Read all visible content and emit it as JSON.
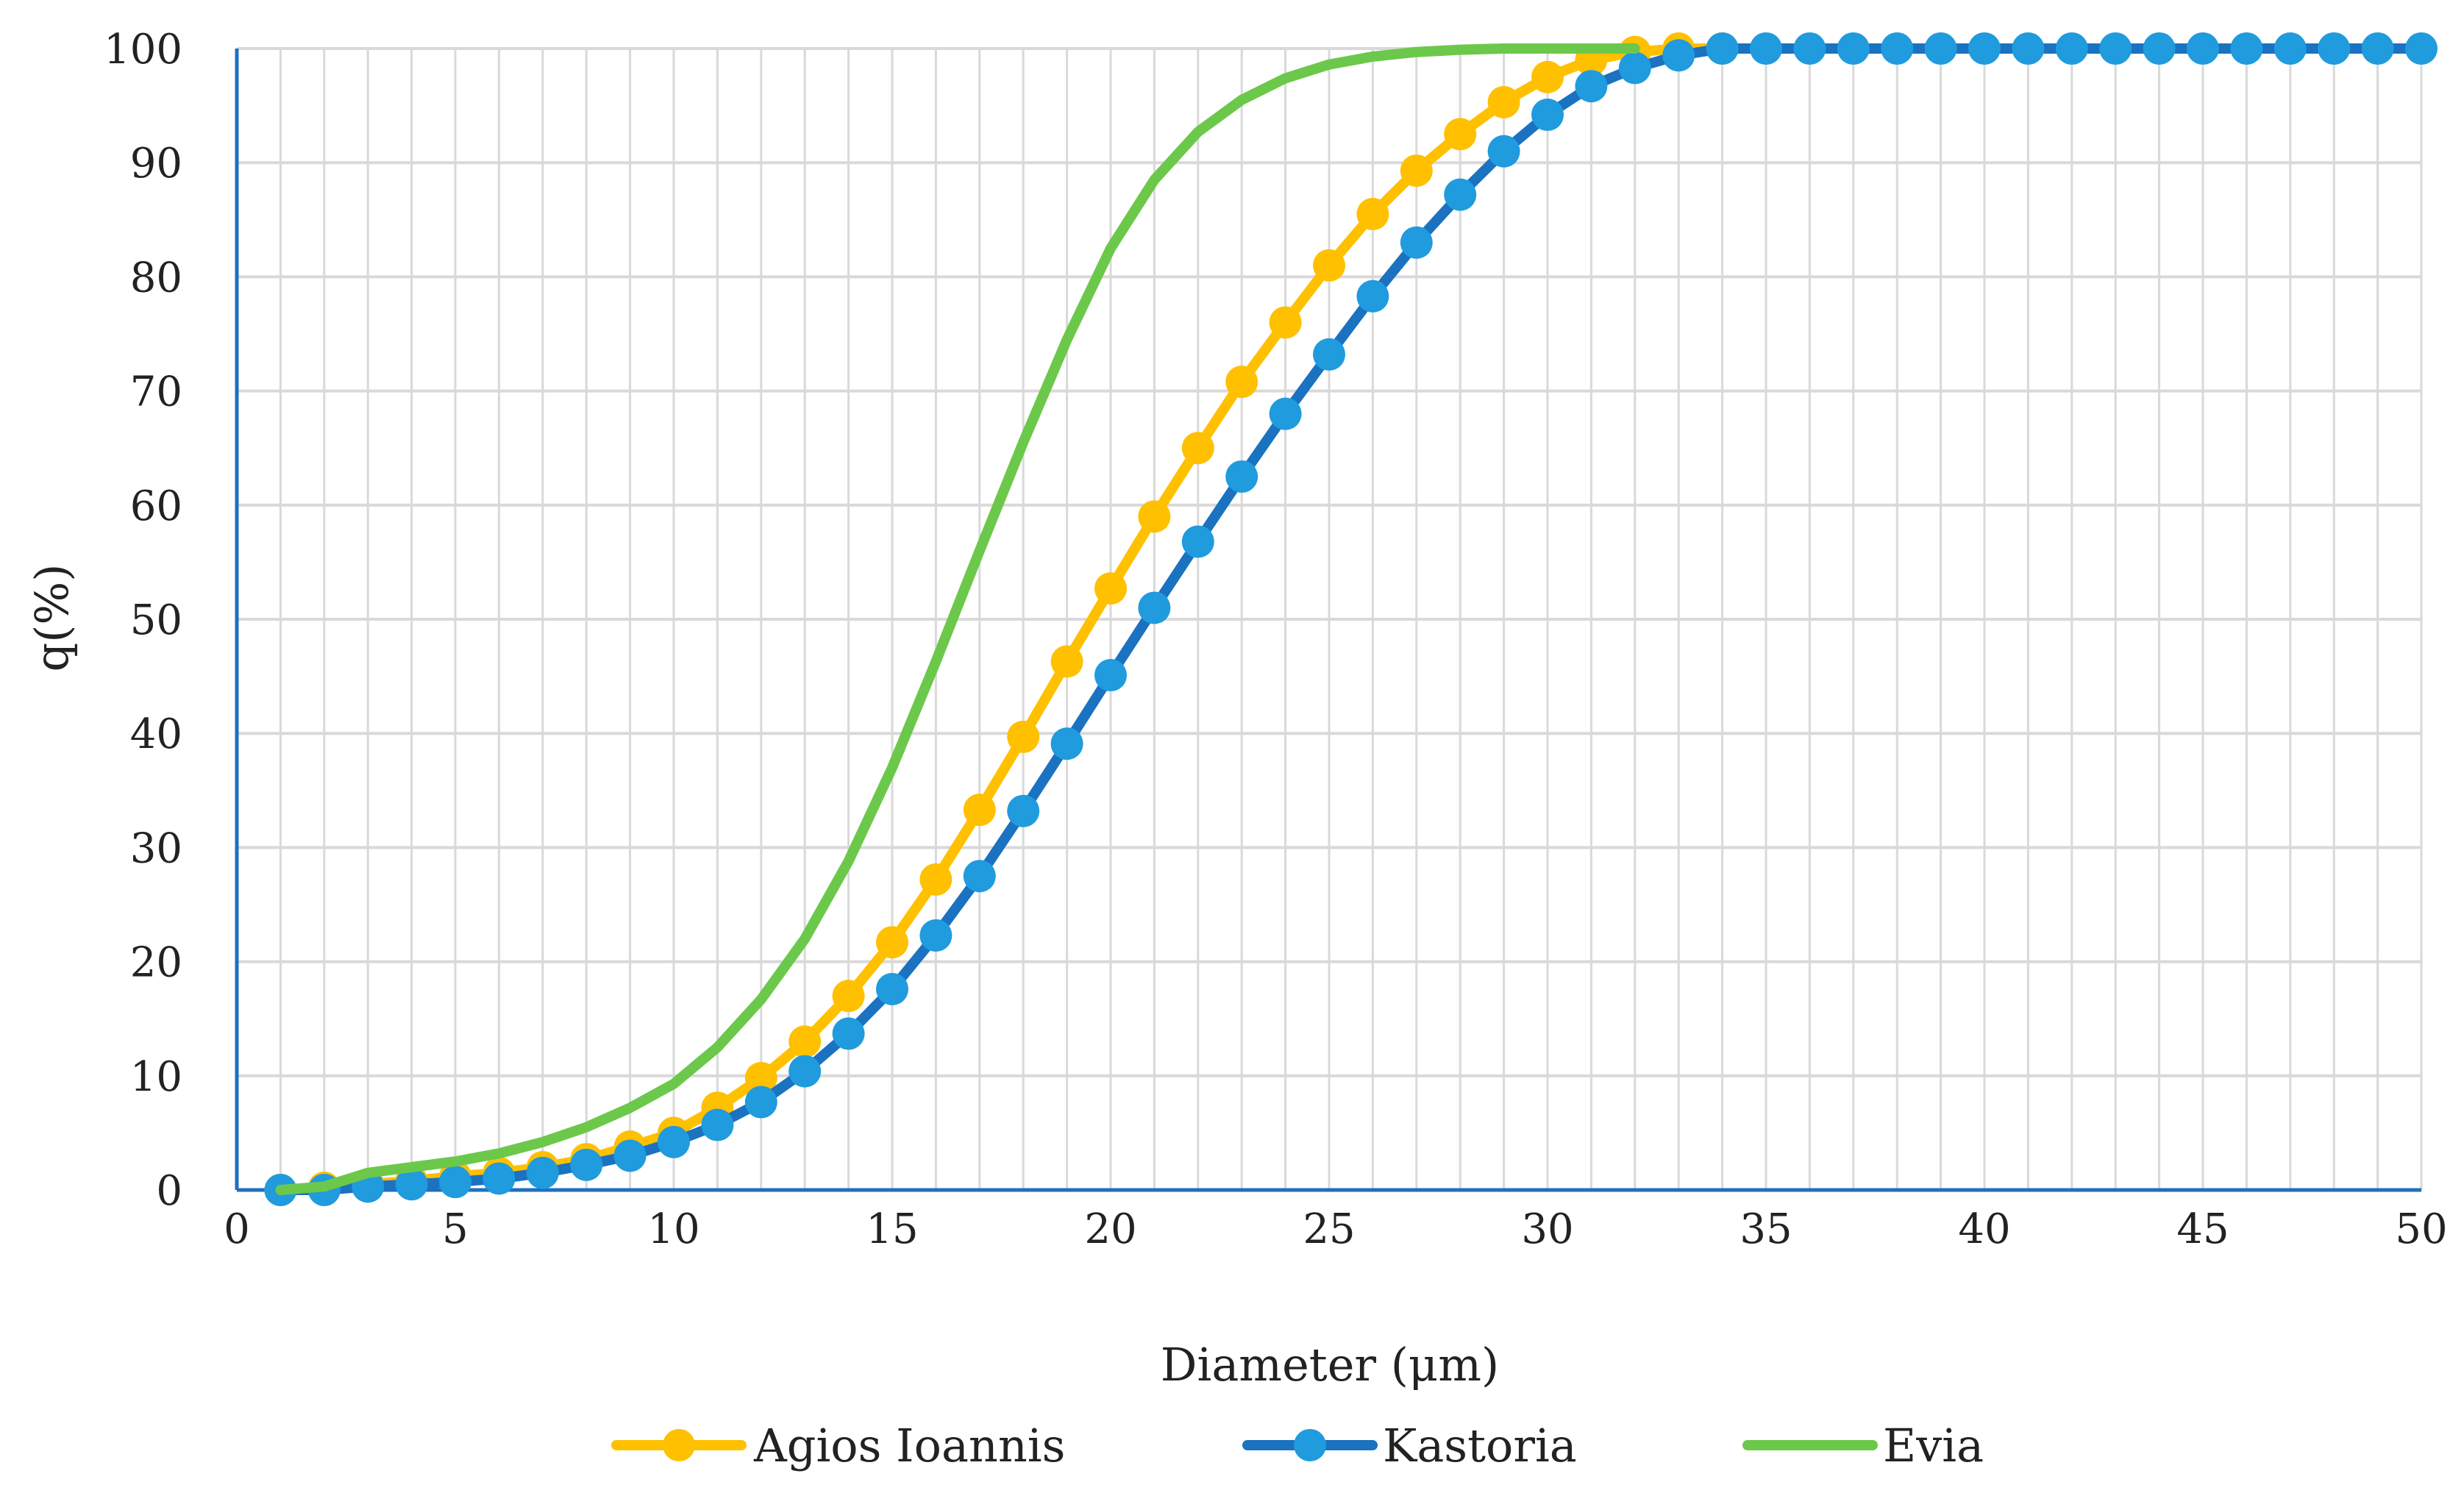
{
  "chart_data": {
    "type": "line",
    "title": "",
    "xlabel": "Diameter (μm)",
    "ylabel": "q(%)",
    "xlim": [
      0,
      50
    ],
    "ylim": [
      0,
      100
    ],
    "x_ticks": [
      "0",
      "5",
      "10",
      "15",
      "20",
      "25",
      "30",
      "35",
      "40",
      "45",
      "50"
    ],
    "y_ticks": [
      "0",
      "10",
      "20",
      "30",
      "40",
      "50",
      "60",
      "70",
      "80",
      "90",
      "100"
    ],
    "grid": true,
    "legend_position": "bottom",
    "series": [
      {
        "name": "Agios Ioannis",
        "color": "#FFC000",
        "marker": "circle",
        "x": [
          1,
          2,
          3,
          4,
          5,
          6,
          7,
          8,
          9,
          10,
          11,
          12,
          13,
          14,
          15,
          16,
          17,
          18,
          19,
          20,
          21,
          22,
          23,
          24,
          25,
          26,
          27,
          28,
          29,
          30,
          31,
          32,
          33,
          34
        ],
        "values": [
          0,
          0.2,
          0.5,
          0.8,
          1.2,
          1.5,
          2.0,
          2.7,
          3.8,
          5.0,
          7.2,
          9.8,
          13.0,
          17.0,
          21.7,
          27.2,
          33.3,
          39.7,
          46.3,
          52.7,
          59.0,
          65.0,
          70.8,
          76.0,
          81.0,
          85.5,
          89.3,
          92.5,
          95.3,
          97.5,
          99.0,
          99.7,
          100,
          100
        ]
      },
      {
        "name": "Kastoria",
        "color": "#1F9BDE",
        "line_color": "#1A72C0",
        "marker": "circle",
        "x": [
          1,
          2,
          3,
          4,
          5,
          6,
          7,
          8,
          9,
          10,
          11,
          12,
          13,
          14,
          15,
          16,
          17,
          18,
          19,
          20,
          21,
          22,
          23,
          24,
          25,
          26,
          27,
          28,
          29,
          30,
          31,
          32,
          33,
          34,
          35,
          36,
          37,
          38,
          39,
          40,
          41,
          42,
          43,
          44,
          45,
          46,
          47,
          48,
          49,
          50
        ],
        "values": [
          0,
          0,
          0.3,
          0.5,
          0.7,
          1.0,
          1.5,
          2.2,
          3.0,
          4.2,
          5.7,
          7.7,
          10.4,
          13.7,
          17.6,
          22.3,
          27.5,
          33.2,
          39.1,
          45.1,
          51.0,
          56.8,
          62.5,
          68.0,
          73.2,
          78.3,
          83.0,
          87.2,
          91.0,
          94.2,
          96.7,
          98.3,
          99.4,
          100,
          100,
          100,
          100,
          100,
          100,
          100,
          100,
          100,
          100,
          100,
          100,
          100,
          100,
          100,
          100,
          100
        ]
      },
      {
        "name": "Evia",
        "color": "#6CC84A",
        "marker": "none",
        "x": [
          1,
          2,
          3,
          4,
          5,
          6,
          7,
          8,
          9,
          10,
          11,
          12,
          13,
          14,
          15,
          16,
          17,
          18,
          19,
          20,
          21,
          22,
          23,
          24,
          25,
          26,
          27,
          28,
          29,
          30,
          31,
          32
        ],
        "values": [
          0,
          0.3,
          1.5,
          2.0,
          2.5,
          3.2,
          4.2,
          5.5,
          7.2,
          9.3,
          12.5,
          16.7,
          22.0,
          28.8,
          37.0,
          46.3,
          56.0,
          65.5,
          74.5,
          82.5,
          88.5,
          92.7,
          95.5,
          97.4,
          98.6,
          99.3,
          99.7,
          99.9,
          100,
          100,
          100,
          100
        ]
      }
    ]
  }
}
